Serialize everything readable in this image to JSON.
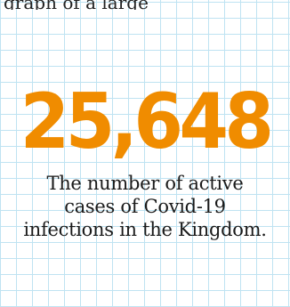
{
  "header": {
    "partial_text": "graph of a large"
  },
  "stat": {
    "value": "25,648",
    "caption_line_1": "The number of active",
    "caption_line_2": "cases of Covid-19",
    "caption_line_3": "infections in the Kingdom."
  },
  "colors": {
    "accent": "#f08c00",
    "grid": "#bfe3f2",
    "text": "#1a1a1a"
  }
}
